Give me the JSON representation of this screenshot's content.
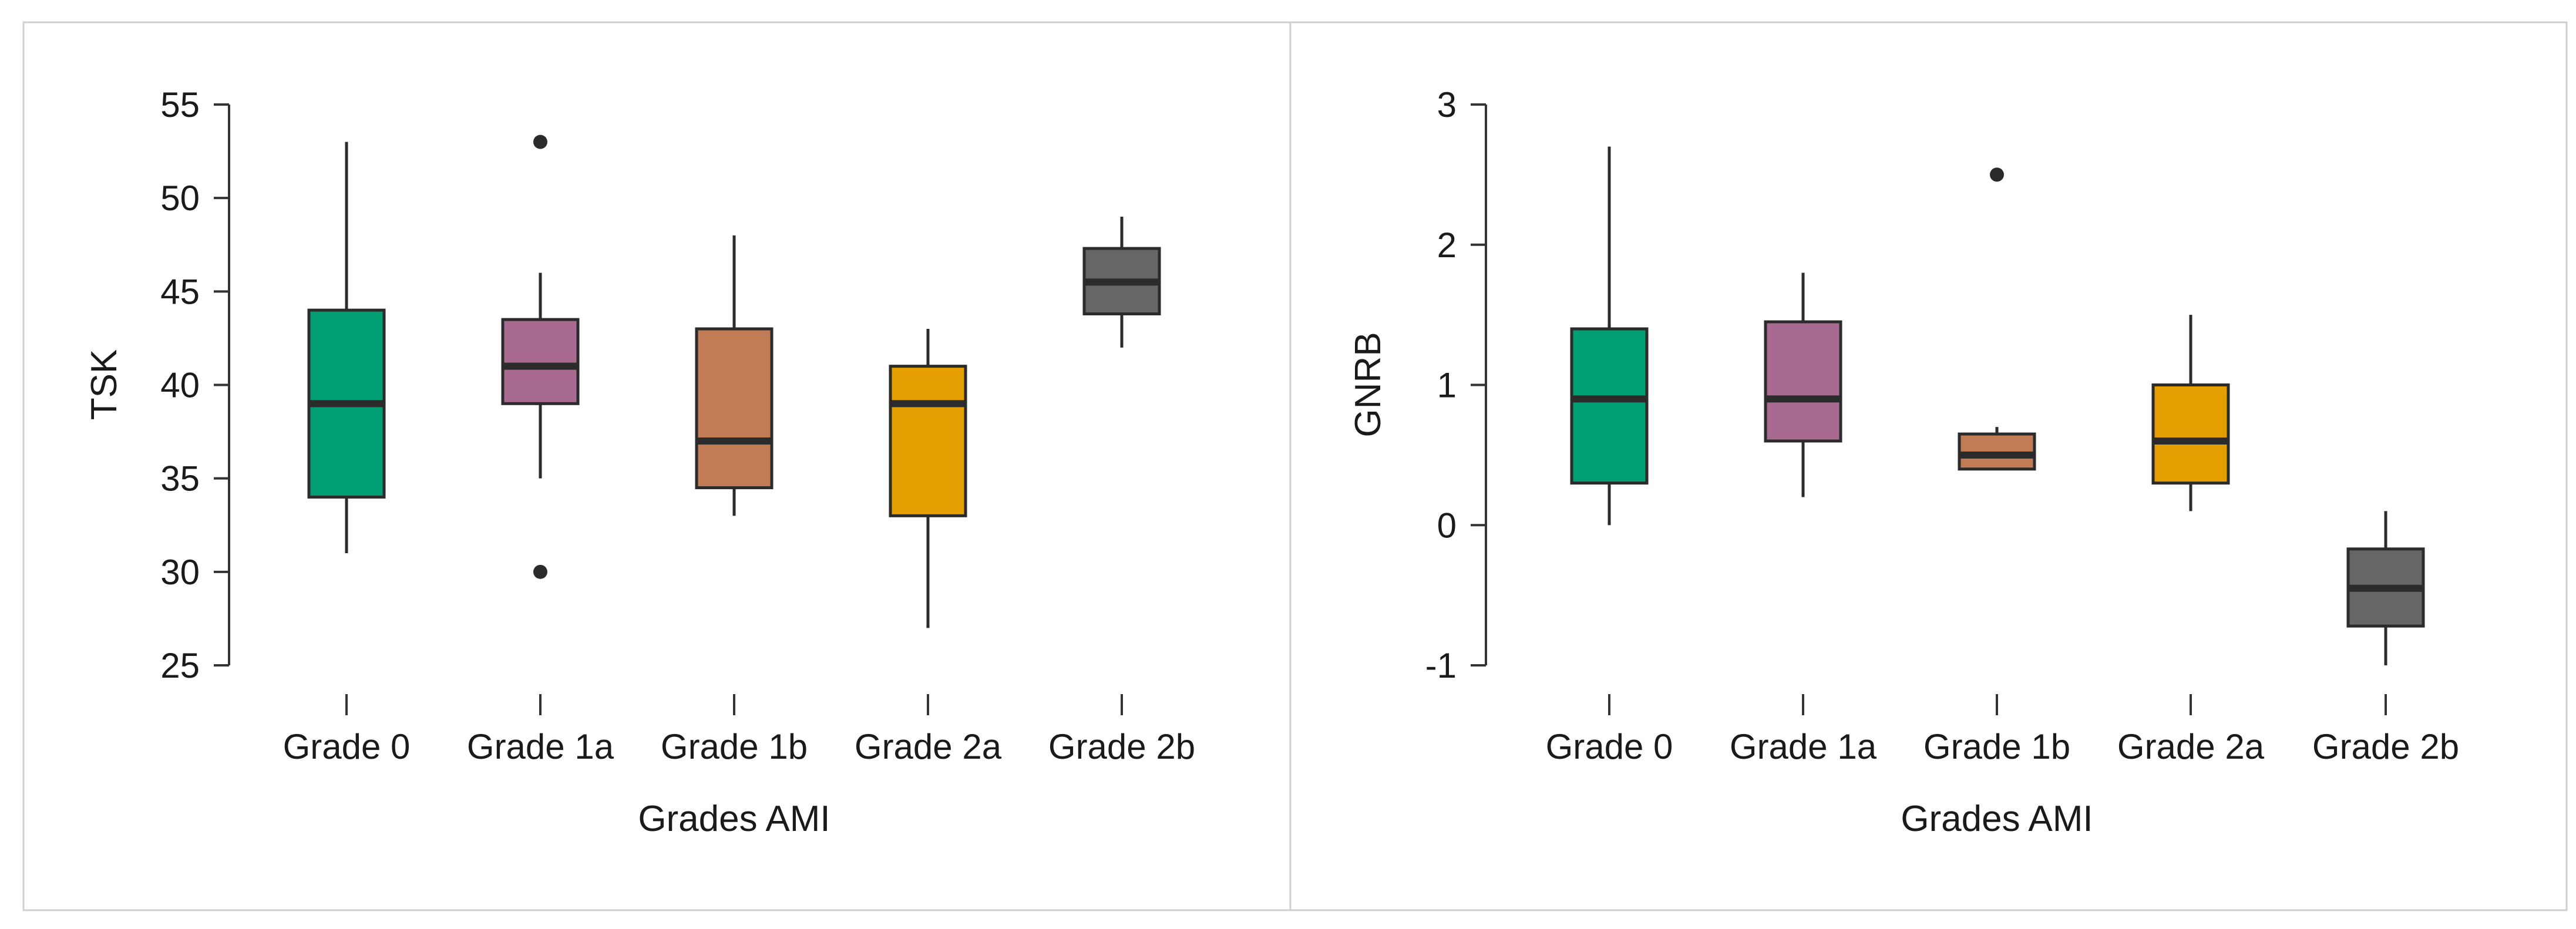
{
  "chart_data": [
    {
      "type": "boxplot",
      "title": "",
      "xlabel": "Grades AMI",
      "ylabel": "TSK",
      "ylim": [
        25,
        55
      ],
      "yticks": [
        25,
        30,
        35,
        40,
        45,
        50,
        55
      ],
      "ytick_labels": [
        "25",
        "30",
        "35",
        "40",
        "45",
        "50",
        "55"
      ],
      "grid": false,
      "categories": [
        "Grade 0",
        "Grade 1a",
        "Grade 1b",
        "Grade 2a",
        "Grade 2b"
      ],
      "boxes": [
        {
          "category": "Grade 0",
          "color": "#009e73",
          "whisker_low": 31,
          "q1": 34,
          "median": 39,
          "q3": 44,
          "whisker_high": 53,
          "outliers": []
        },
        {
          "category": "Grade 1a",
          "color": "#a96a92",
          "whisker_low": 35,
          "q1": 39,
          "median": 41,
          "q3": 43.5,
          "whisker_high": 46,
          "outliers": [
            30,
            53
          ]
        },
        {
          "category": "Grade 1b",
          "color": "#c27c55",
          "whisker_low": 33,
          "q1": 34.5,
          "median": 37,
          "q3": 43,
          "whisker_high": 48,
          "outliers": []
        },
        {
          "category": "Grade 2a",
          "color": "#e69f00",
          "whisker_low": 27,
          "q1": 33,
          "median": 39,
          "q3": 41,
          "whisker_high": 43,
          "outliers": []
        },
        {
          "category": "Grade 2b",
          "color": "#666666",
          "whisker_low": 42,
          "q1": 43.8,
          "median": 45.5,
          "q3": 47.3,
          "whisker_high": 49,
          "outliers": []
        }
      ]
    },
    {
      "type": "boxplot",
      "title": "",
      "xlabel": "Grades AMI",
      "ylabel": "GNRB",
      "ylim": [
        -1,
        3
      ],
      "yticks": [
        -1,
        0,
        1,
        2,
        3
      ],
      "ytick_labels": [
        "-1",
        "0",
        "1",
        "2",
        "3"
      ],
      "grid": false,
      "categories": [
        "Grade 0",
        "Grade 1a",
        "Grade 1b",
        "Grade 2a",
        "Grade 2b"
      ],
      "boxes": [
        {
          "category": "Grade 0",
          "color": "#009e73",
          "whisker_low": 0,
          "q1": 0.3,
          "median": 0.9,
          "q3": 1.4,
          "whisker_high": 2.7,
          "outliers": []
        },
        {
          "category": "Grade 1a",
          "color": "#a96a92",
          "whisker_low": 0.2,
          "q1": 0.6,
          "median": 0.9,
          "q3": 1.45,
          "whisker_high": 1.8,
          "outliers": []
        },
        {
          "category": "Grade 1b",
          "color": "#c27c55",
          "whisker_low": 0.4,
          "q1": 0.4,
          "median": 0.5,
          "q3": 0.65,
          "whisker_high": 0.7,
          "outliers": [
            2.5
          ]
        },
        {
          "category": "Grade 2a",
          "color": "#e69f00",
          "whisker_low": 0.1,
          "q1": 0.3,
          "median": 0.6,
          "q3": 1.0,
          "whisker_high": 1.5,
          "outliers": []
        },
        {
          "category": "Grade 2b",
          "color": "#666666",
          "whisker_low": -1.0,
          "q1": -0.72,
          "median": -0.45,
          "q3": -0.17,
          "whisker_high": 0.1,
          "outliers": []
        }
      ]
    }
  ]
}
